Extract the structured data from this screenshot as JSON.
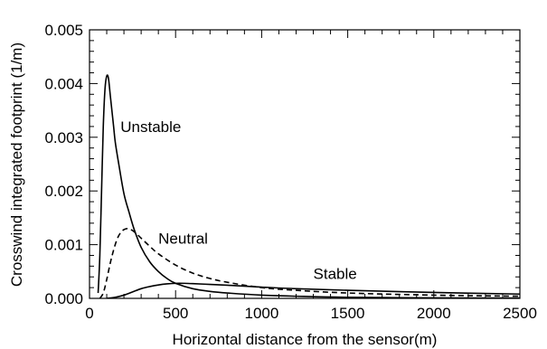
{
  "chart_data": {
    "type": "line",
    "title": "",
    "xlabel": "Horizontal distance from the sensor(m)",
    "ylabel": "Crosswind integrated footprint (1/m)",
    "xlim": [
      0,
      2500
    ],
    "ylim": [
      0,
      0.005
    ],
    "grid": false,
    "legend": "none",
    "x_ticks": [
      {
        "value": 0,
        "label": "0"
      },
      {
        "value": 500,
        "label": "500"
      },
      {
        "value": 1000,
        "label": "1000"
      },
      {
        "value": 1500,
        "label": "1500"
      },
      {
        "value": 2000,
        "label": "2000"
      },
      {
        "value": 2500,
        "label": "2500"
      }
    ],
    "y_ticks": [
      {
        "value": 0,
        "label": "0.000"
      },
      {
        "value": 0.001,
        "label": "0.001"
      },
      {
        "value": 0.002,
        "label": "0.002"
      },
      {
        "value": 0.003,
        "label": "0.003"
      },
      {
        "value": 0.004,
        "label": "0.004"
      },
      {
        "value": 0.005,
        "label": "0.005"
      }
    ],
    "series": [
      {
        "name": "Unstable",
        "style": "solid",
        "color": "#000000",
        "x": [
          50,
          60,
          70,
          80,
          90,
          100,
          110,
          120,
          130,
          140,
          150,
          170,
          200,
          230,
          260,
          300,
          350,
          400,
          450,
          500,
          600,
          700,
          800,
          1000,
          1200,
          1500,
          2000,
          2500
        ],
        "y": [
          0.0001,
          0.0008,
          0.002,
          0.0032,
          0.0039,
          0.00414,
          0.0041,
          0.0038,
          0.0035,
          0.0032,
          0.0029,
          0.0025,
          0.00195,
          0.0016,
          0.00128,
          0.00095,
          0.00068,
          0.0005,
          0.00037,
          0.00028,
          0.00018,
          0.00013,
          0.0001,
          6e-05,
          4e-05,
          2e-05,
          1e-05,
          5e-06
        ]
      },
      {
        "name": "Neutral",
        "style": "dashed",
        "color": "#000000",
        "x": [
          60,
          80,
          100,
          120,
          140,
          160,
          180,
          200,
          220,
          240,
          260,
          300,
          350,
          400,
          500,
          600,
          700,
          800,
          1000,
          1200,
          1500,
          2000,
          2500
        ],
        "y": [
          0.0,
          0.0001,
          0.00035,
          0.00065,
          0.0009,
          0.0011,
          0.00122,
          0.00128,
          0.0013,
          0.00128,
          0.00124,
          0.00112,
          0.00097,
          0.00083,
          0.00062,
          0.00047,
          0.00037,
          0.0003,
          0.0002,
          0.00015,
          0.0001,
          6e-05,
          4e-05
        ]
      },
      {
        "name": "Stable",
        "style": "solid",
        "color": "#000000",
        "x": [
          100,
          150,
          200,
          250,
          300,
          350,
          400,
          450,
          500,
          550,
          600,
          700,
          800,
          1000,
          1200,
          1500,
          2000,
          2500
        ],
        "y": [
          0.0,
          2e-05,
          6e-05,
          0.00012,
          0.00018,
          0.00022,
          0.00025,
          0.00027,
          0.00028,
          0.00028,
          0.000275,
          0.00026,
          0.000245,
          0.00021,
          0.00018,
          0.00015,
          0.00011,
          8e-05
        ]
      }
    ],
    "annotations": [
      {
        "text": "Unstable",
        "x": 180,
        "y": 0.0031
      },
      {
        "text": "Neutral",
        "x": 400,
        "y": 0.00102
      },
      {
        "text": "Stable",
        "x": 1300,
        "y": 0.00036
      }
    ]
  }
}
